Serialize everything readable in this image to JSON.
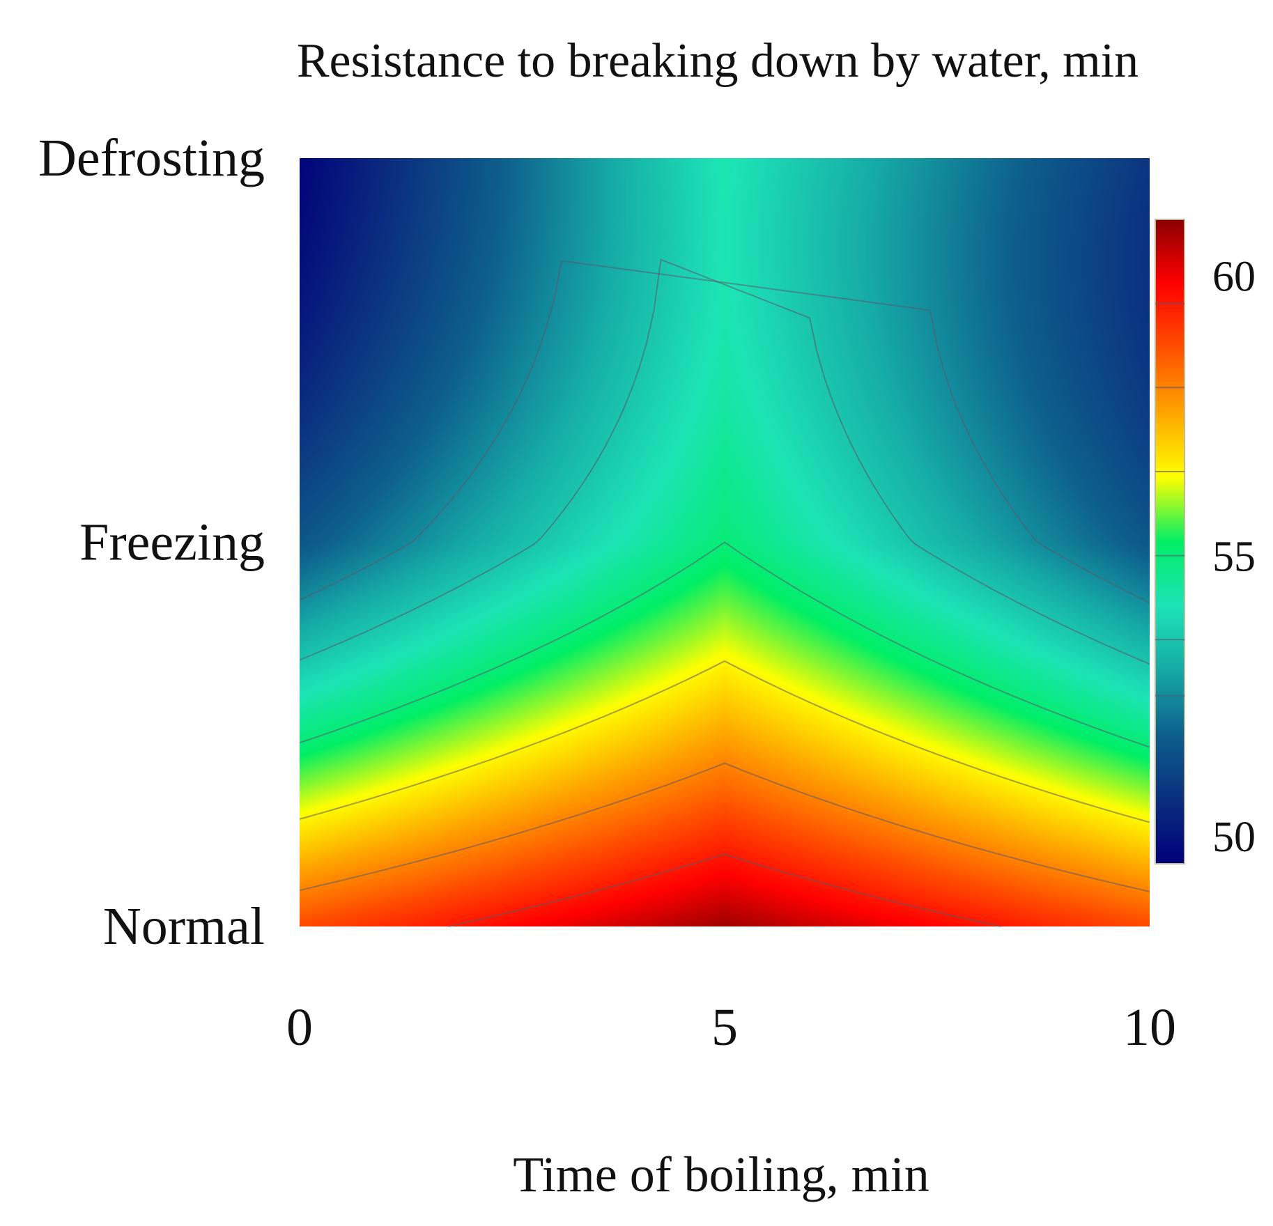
{
  "chart_data": {
    "type": "heatmap",
    "title": "Resistance to breaking down by water, min",
    "xlabel": "Time of boiling, min",
    "ylabel": "",
    "x_ticks": [
      "0",
      "5",
      "10"
    ],
    "x_values": [
      0,
      5,
      10
    ],
    "xlim": [
      0,
      10
    ],
    "y_categories": [
      "Normal",
      "Freezing",
      "Defrosting"
    ],
    "colorbar": {
      "range": [
        49.5,
        61
      ],
      "ticks": [
        50,
        55,
        60
      ],
      "tick_labels": [
        "50",
        "55",
        "60"
      ],
      "colormap": [
        "#00007a",
        "#0b2f7f",
        "#0d5f8c",
        "#16a9a6",
        "#1de3b6",
        "#00ee66",
        "#ffff00",
        "#ffa500",
        "#ff5000",
        "#ff0000",
        "#8b0000"
      ]
    },
    "contour_levels": [
      52.5,
      53.5,
      55,
      56.5,
      58,
      59.5
    ],
    "grid": false,
    "values_description": "Resistance values at grid points (rows: Normal, Freezing, Defrosting; columns: boiling time 0, 5, 10 min)",
    "values": [
      [
        58.8,
        60.8,
        58.8
      ],
      [
        51.6,
        55.0,
        51.6
      ],
      [
        49.6,
        54.2,
        50.8
      ]
    ]
  }
}
